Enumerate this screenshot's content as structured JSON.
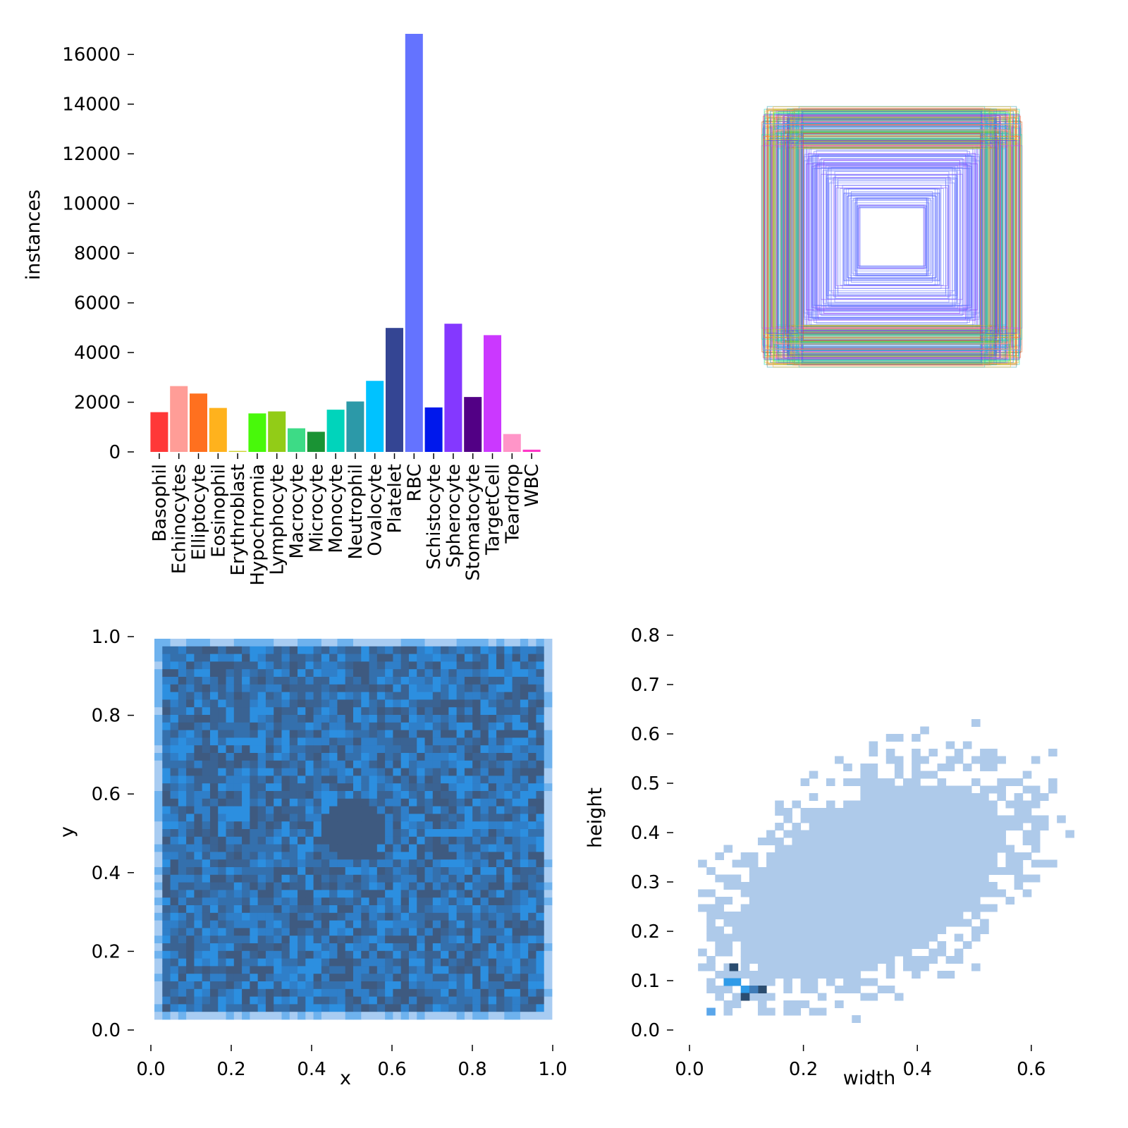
{
  "chart_data": [
    {
      "type": "bar",
      "ylabel": "instances",
      "xlabel": "",
      "ylim": [
        0,
        17000
      ],
      "yticks": [
        0,
        2000,
        4000,
        6000,
        8000,
        10000,
        12000,
        14000,
        16000
      ],
      "categories": [
        "Basophil",
        "Echinocytes",
        "Elliptocyte",
        "Eosinophil",
        "Erythroblast",
        "Hypochromia",
        "Lymphocyte",
        "Macrocyte",
        "Microcyte",
        "Monocyte",
        "Neutrophil",
        "Ovalocyte",
        "Platelet",
        "RBC",
        "Schistocyte",
        "Spherocyte",
        "Stomatocyte",
        "TargetCell",
        "Teardrop",
        "WBC"
      ],
      "values": [
        1600,
        2650,
        2350,
        1770,
        40,
        1550,
        1630,
        950,
        810,
        1700,
        2030,
        2860,
        4990,
        16830,
        1790,
        5160,
        2210,
        4700,
        720,
        90
      ],
      "colors": [
        "#ff3838",
        "#ff9d97",
        "#ff701f",
        "#ffb21d",
        "#cfd231",
        "#48f90a",
        "#92cc17",
        "#3ddb86",
        "#1a9334",
        "#00d4bb",
        "#2c99a8",
        "#00c2ff",
        "#344593",
        "#6473ff",
        "#0018ec",
        "#8438ff",
        "#520085",
        "#cb38ff",
        "#ff95c8",
        "#ff37c7"
      ]
    },
    {
      "type": "box-overlay",
      "description_colors": [
        "#ff3838",
        "#ff9d97",
        "#ff701f",
        "#ffb21d",
        "#cfd231",
        "#48f90a",
        "#3ddb86",
        "#00d4bb",
        "#2c99a8",
        "#00c2ff",
        "#6473ff",
        "#8438ff",
        "#cb38ff"
      ]
    },
    {
      "type": "heatmap",
      "xlabel": "x",
      "ylabel": "y",
      "xlim": [
        0.0,
        1.0
      ],
      "ylim": [
        0.0,
        1.0
      ],
      "xticks": [
        "0.0",
        "0.2",
        "0.4",
        "0.6",
        "0.8",
        "1.0"
      ],
      "yticks": [
        "0.0",
        "0.2",
        "0.4",
        "0.6",
        "0.8",
        "1.0"
      ],
      "colors": [
        "#a8ccf2",
        "#2f9be8",
        "#3e5c80"
      ]
    },
    {
      "type": "heatmap",
      "xlabel": "width",
      "ylabel": "height",
      "xlim": [
        0.0,
        0.75
      ],
      "ylim": [
        0.0,
        0.8
      ],
      "xticks": [
        "0.0",
        "0.2",
        "0.4",
        "0.6"
      ],
      "yticks": [
        "0.0",
        "0.1",
        "0.2",
        "0.3",
        "0.4",
        "0.5",
        "0.6",
        "0.7",
        "0.8"
      ],
      "colors": [
        "#aecaea",
        "#2f9be8",
        "#2b4d70"
      ]
    }
  ]
}
